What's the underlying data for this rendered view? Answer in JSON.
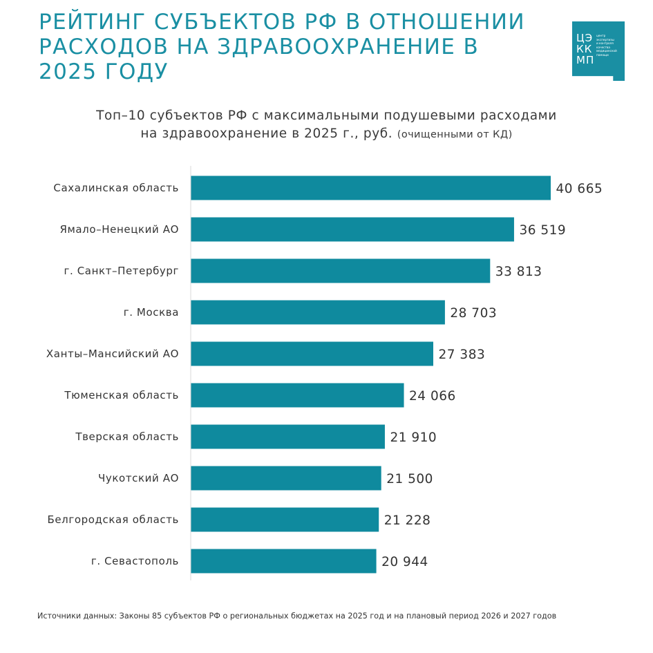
{
  "header": {
    "title_lines": [
      "РЕЙТИНГ СУБЪЕКТОВ РФ В ОТНОШЕНИИ",
      "РАСХОДОВ НА ЗДРАВООХРАНЕНИЕ В",
      "2025 ГОДУ"
    ]
  },
  "logo": {
    "letters": [
      "ЦЭ",
      "КК",
      "МП"
    ],
    "small_text": [
      "центр",
      "экспертизы",
      "и контроля",
      "качества",
      "медицинской",
      "помощи"
    ]
  },
  "colors": {
    "accent": "#1a8fa3",
    "bar": "#0f8a9e",
    "text": "#333333"
  },
  "chart_data": {
    "type": "bar",
    "orientation": "horizontal",
    "title_line1": "Топ–10 субъектов РФ с максимальными подушевыми расходами",
    "title_line2": "на здравоохранение в 2025 г., руб.",
    "title_note": "(очищенными от КД)",
    "categories": [
      "Сахалинская область",
      "Ямало–Ненецкий АО",
      "г. Санкт–Петербург",
      "г. Москва",
      "Ханты–Мансийский АО",
      "Тюменская область",
      "Тверская область",
      "Чукотский АО",
      "Белгородская область",
      "г. Севастополь"
    ],
    "values": [
      40665,
      36519,
      33813,
      28703,
      27383,
      24066,
      21910,
      21500,
      21228,
      20944
    ],
    "value_labels": [
      "40 665",
      "36 519",
      "33 813",
      "28 703",
      "27 383",
      "24 066",
      "21 910",
      "21 500",
      "21 228",
      "20 944"
    ],
    "xlim": [
      0,
      45000
    ],
    "grid": false,
    "legend": "none"
  },
  "footer": {
    "source": "Источники данных: Законы 85 субъектов РФ о региональных бюджетах на 2025 год и на плановый период 2026 и 2027 годов"
  }
}
